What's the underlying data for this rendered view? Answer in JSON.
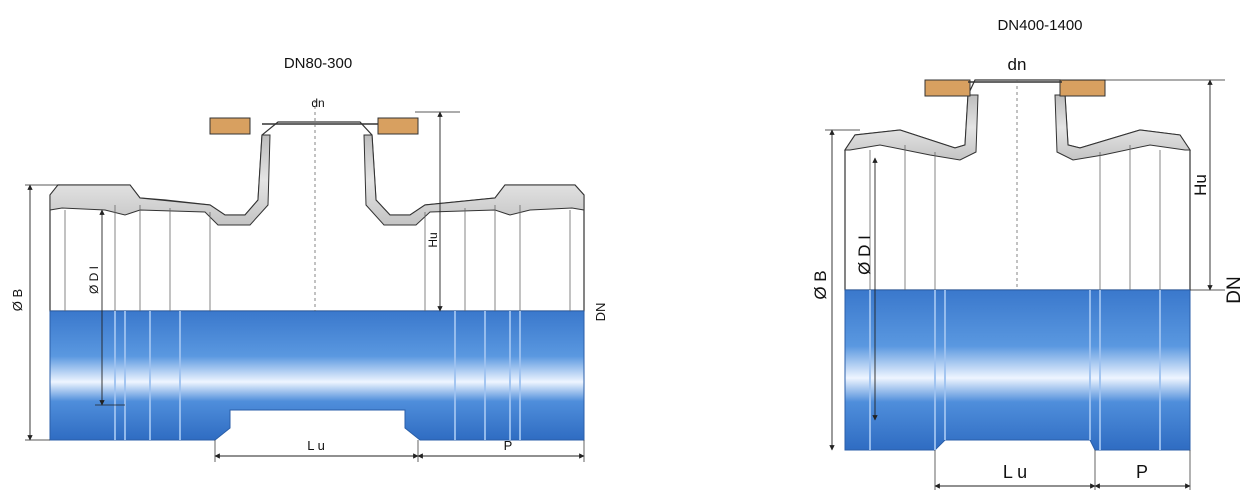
{
  "left": {
    "title": "DN80-300",
    "dn": "dn",
    "hu": "Hu",
    "dn_side": "DN",
    "od": "Ø B",
    "id": "Ø D I",
    "lu": "L u",
    "p": "P"
  },
  "right": {
    "title": "DN400-1400",
    "dn": "dn",
    "hu": "Hu",
    "dn_side": "DN",
    "od": "Ø B",
    "id": "Ø D I",
    "lu": "L u",
    "p": "P"
  },
  "colors": {
    "pipe_blue": "#3f7fd0",
    "pipe_highlight": "#e8f2ff",
    "casting_grey": "#c9c9c9",
    "flange_tan": "#d8a060",
    "line": "#222222"
  }
}
